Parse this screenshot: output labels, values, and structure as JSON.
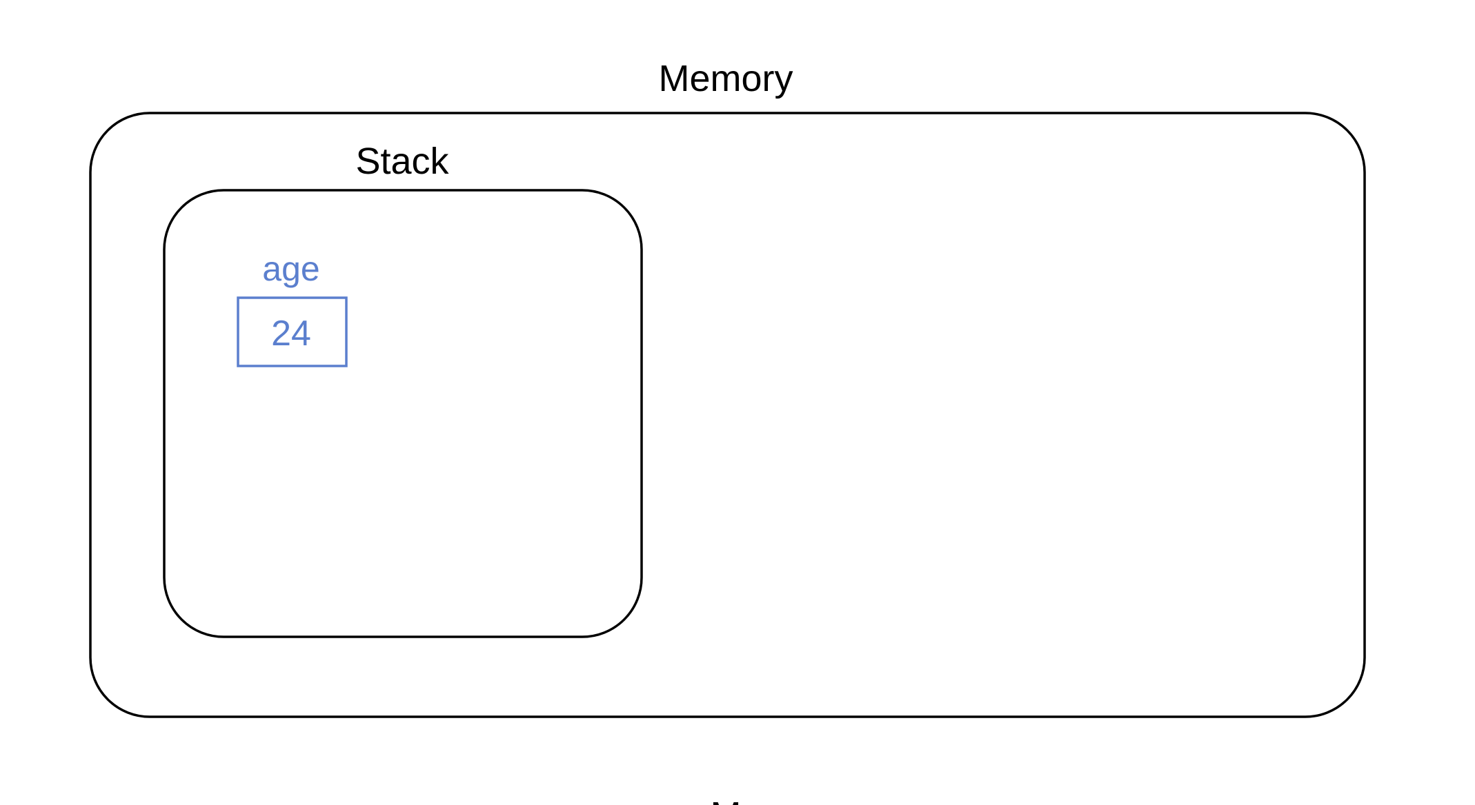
{
  "diagram": {
    "memory": {
      "label": "Memory"
    },
    "stack": {
      "label": "Stack"
    },
    "variable": {
      "name": "age",
      "value": "24"
    },
    "bottom_caption": "M",
    "colors": {
      "outline": "#000000",
      "variable": "#5b7fce",
      "background": "#ffffff"
    }
  }
}
